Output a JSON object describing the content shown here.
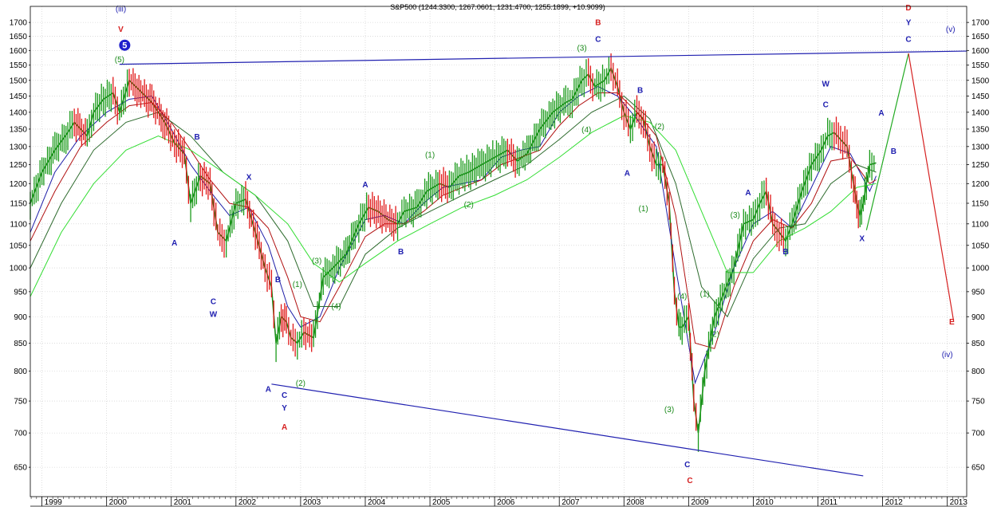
{
  "chart_data": {
    "type": "line",
    "title": "S&P500 (1244.3300, 1267.0601, 1231.4700, 1255.1899, +10.9099)",
    "xlabel": "",
    "ylabel": "",
    "y_scale": "log",
    "ylim": [
      610,
      1760
    ],
    "xlim": [
      1998.82,
      2013.3
    ],
    "grid": true,
    "y_ticks": [
      650,
      700,
      750,
      800,
      850,
      900,
      950,
      1000,
      1050,
      1100,
      1150,
      1200,
      1250,
      1300,
      1350,
      1400,
      1450,
      1500,
      1550,
      1600,
      1650,
      1700
    ],
    "x_ticks": [
      {
        "label": "1999",
        "x": 1999.0
      },
      {
        "label": "2000",
        "x": 2000.0
      },
      {
        "label": "2001",
        "x": 2001.0
      },
      {
        "label": "2002",
        "x": 2002.0
      },
      {
        "label": "2003",
        "x": 2003.0
      },
      {
        "label": "2004",
        "x": 2004.0
      },
      {
        "label": "2005",
        "x": 2005.0
      },
      {
        "label": "2006",
        "x": 2006.0
      },
      {
        "label": "2007",
        "x": 2007.0
      },
      {
        "label": "2008",
        "x": 2008.0
      },
      {
        "label": "2009",
        "x": 2009.0
      },
      {
        "label": "2010",
        "x": 2010.0
      },
      {
        "label": "2011",
        "x": 2011.0
      },
      {
        "label": "2012",
        "x": 2012.0
      },
      {
        "label": "2013",
        "x": 2013.0
      }
    ],
    "series": [
      {
        "color": "#1a8a1a",
        "x": [
          1998.82,
          1999.0,
          1999.2,
          1999.4,
          1999.5,
          1999.7,
          1999.8,
          1999.95,
          2000.1,
          2000.2,
          2000.35,
          2000.5,
          2000.7,
          2000.9,
          2001.05,
          2001.2,
          2001.3,
          2001.45,
          2001.6,
          2001.72,
          2001.85,
          2002.0,
          2002.15,
          2002.3,
          2002.45,
          2002.55,
          2002.62,
          2002.7,
          2002.78,
          2002.85,
          2002.95,
          2003.05,
          2003.2,
          2003.35,
          2003.5,
          2003.7,
          2003.9,
          2004.05,
          2004.2,
          2004.35,
          2004.5,
          2004.6,
          2004.8,
          2004.95,
          2005.15,
          2005.3,
          2005.45,
          2005.6,
          2005.8,
          2006.0,
          2006.2,
          2006.35,
          2006.5,
          2006.7,
          2006.9,
          2007.1,
          2007.2,
          2007.35,
          2007.45,
          2007.55,
          2007.7,
          2007.8,
          2007.9,
          2008.0,
          2008.1,
          2008.2,
          2008.3,
          2008.4,
          2008.5,
          2008.6,
          2008.7,
          2008.78,
          2008.85,
          2008.9,
          2009.0,
          2009.08,
          2009.15,
          2009.25,
          2009.4,
          2009.55,
          2009.7,
          2009.85,
          2010.0,
          2010.1,
          2010.2,
          2010.3,
          2010.4,
          2010.5,
          2010.6,
          2010.75,
          2010.9,
          2011.05,
          2011.15,
          2011.25,
          2011.35,
          2011.45,
          2011.55,
          2011.6,
          2011.65,
          2011.7,
          2011.75,
          2011.8,
          2011.9
        ],
        "values": [
          1150,
          1230,
          1290,
          1340,
          1370,
          1330,
          1400,
          1440,
          1460,
          1400,
          1500,
          1470,
          1430,
          1370,
          1310,
          1280,
          1150,
          1220,
          1200,
          1080,
          1060,
          1150,
          1160,
          1080,
          1000,
          960,
          850,
          900,
          890,
          860,
          850,
          870,
          860,
          980,
          1000,
          1030,
          1100,
          1140,
          1130,
          1110,
          1100,
          1130,
          1140,
          1180,
          1200,
          1190,
          1220,
          1230,
          1250,
          1270,
          1290,
          1260,
          1280,
          1350,
          1400,
          1430,
          1440,
          1500,
          1520,
          1480,
          1500,
          1540,
          1480,
          1400,
          1350,
          1400,
          1380,
          1300,
          1250,
          1250,
          1150,
          950,
          880,
          880,
          900,
          750,
          700,
          800,
          900,
          950,
          1000,
          1100,
          1110,
          1150,
          1180,
          1100,
          1080,
          1060,
          1100,
          1180,
          1250,
          1290,
          1330,
          1340,
          1320,
          1300,
          1200,
          1150,
          1120,
          1150,
          1200,
          1250,
          1255
        ]
      },
      {
        "color": "#1f1fa8",
        "x": [
          1998.82,
          1999.2,
          1999.6,
          2000.0,
          2000.35,
          2000.7,
          2001.0,
          2001.3,
          2001.6,
          2001.9,
          2002.2,
          2002.5,
          2002.8,
          2003.0,
          2003.3,
          2003.6,
          2004.0,
          2004.3,
          2004.6,
          2004.9,
          2005.2,
          2005.5,
          2005.8,
          2006.1,
          2006.4,
          2006.7,
          2007.0,
          2007.3,
          2007.6,
          2007.9,
          2008.2,
          2008.5,
          2008.8,
          2009.1,
          2009.4,
          2009.7,
          2010.0,
          2010.3,
          2010.6,
          2010.9,
          2011.2,
          2011.5,
          2011.8,
          2011.9
        ],
        "values": [
          1080,
          1230,
          1330,
          1400,
          1440,
          1450,
          1350,
          1250,
          1180,
          1120,
          1140,
          1050,
          920,
          880,
          900,
          1000,
          1110,
          1120,
          1100,
          1150,
          1190,
          1200,
          1210,
          1270,
          1290,
          1300,
          1400,
          1450,
          1480,
          1450,
          1380,
          1300,
          1000,
          780,
          870,
          1000,
          1100,
          1130,
          1090,
          1190,
          1300,
          1280,
          1180,
          1220
        ]
      },
      {
        "color": "#b01010",
        "x": [
          1998.82,
          1999.2,
          1999.6,
          2000.0,
          2000.35,
          2000.7,
          2001.0,
          2001.3,
          2001.6,
          2001.9,
          2002.2,
          2002.5,
          2002.8,
          2003.0,
          2003.3,
          2003.6,
          2004.0,
          2004.3,
          2004.6,
          2004.9,
          2005.2,
          2005.5,
          2005.8,
          2006.1,
          2006.4,
          2006.7,
          2007.0,
          2007.3,
          2007.6,
          2007.9,
          2008.2,
          2008.5,
          2008.8,
          2009.1,
          2009.4,
          2009.7,
          2010.0,
          2010.3,
          2010.6,
          2010.9,
          2011.2,
          2011.5,
          2011.8,
          2011.9
        ],
        "values": [
          1060,
          1180,
          1300,
          1370,
          1420,
          1430,
          1370,
          1290,
          1210,
          1150,
          1140,
          1090,
          980,
          900,
          890,
          960,
          1070,
          1100,
          1100,
          1130,
          1170,
          1190,
          1210,
          1250,
          1270,
          1290,
          1360,
          1420,
          1460,
          1460,
          1400,
          1330,
          1120,
          850,
          840,
          960,
          1060,
          1110,
          1090,
          1150,
          1260,
          1270,
          1200,
          1210
        ]
      },
      {
        "color": "#2e6b2e",
        "x": [
          1998.82,
          1999.3,
          1999.8,
          2000.3,
          2000.8,
          2001.3,
          2001.8,
          2002.3,
          2002.8,
          2003.2,
          2003.6,
          2004.0,
          2004.5,
          2005.0,
          2005.5,
          2006.0,
          2006.5,
          2007.0,
          2007.5,
          2008.0,
          2008.4,
          2008.8,
          2009.2,
          2009.6,
          2010.0,
          2010.4,
          2010.8,
          2011.2,
          2011.6,
          2011.9
        ],
        "values": [
          1000,
          1150,
          1290,
          1370,
          1400,
          1330,
          1230,
          1170,
          1060,
          920,
          920,
          1030,
          1090,
          1130,
          1170,
          1210,
          1250,
          1320,
          1400,
          1450,
          1380,
          1200,
          960,
          900,
          1020,
          1090,
          1100,
          1200,
          1250,
          1230
        ]
      },
      {
        "color": "#33dd33",
        "x": [
          1998.82,
          1999.3,
          1999.8,
          2000.3,
          2000.8,
          2001.3,
          2001.8,
          2002.3,
          2002.8,
          2003.2,
          2003.6,
          2004.0,
          2004.5,
          2005.0,
          2005.5,
          2006.0,
          2006.5,
          2007.0,
          2007.5,
          2008.0,
          2008.4,
          2008.8,
          2009.2,
          2009.6,
          2010.0,
          2010.4,
          2010.8,
          2011.2,
          2011.6,
          2011.9
        ],
        "values": [
          940,
          1080,
          1200,
          1290,
          1330,
          1290,
          1230,
          1170,
          1100,
          1010,
          970,
          1010,
          1060,
          1100,
          1140,
          1170,
          1210,
          1270,
          1340,
          1390,
          1370,
          1290,
          1130,
          990,
          990,
          1060,
          1090,
          1130,
          1190,
          1200
        ]
      }
    ],
    "projection": [
      {
        "color": "#22aa22",
        "x": [
          2011.75,
          2012.4
        ],
        "values": [
          1085,
          1590
        ]
      },
      {
        "color": "#d62020",
        "x": [
          2012.4,
          2013.1
        ],
        "values": [
          1590,
          890
        ]
      }
    ],
    "trendlines": [
      {
        "color": "#2020b0",
        "x": [
          2000.2,
          2013.3
        ],
        "values": [
          1553,
          1598
        ]
      },
      {
        "color": "#2020b0",
        "x": [
          2002.55,
          2011.7
        ],
        "values": [
          778,
          638
        ]
      }
    ],
    "annotations": [
      {
        "text": "(iii)",
        "x": 2000.22,
        "y": 1740,
        "color": "#2020b0",
        "kind": "label"
      },
      {
        "text": "V",
        "x": 2000.22,
        "y": 1665,
        "color": "#d62020",
        "kind": "label"
      },
      {
        "text": "5",
        "x": 2000.28,
        "y": 1610,
        "color": "#1f1fcc",
        "kind": "badge"
      },
      {
        "text": "(5)",
        "x": 2000.2,
        "y": 1560,
        "color": "#1a8a1a",
        "kind": "label"
      },
      {
        "text": "B",
        "x": 2001.4,
        "y": 1320,
        "color": "#2020b0",
        "kind": "label"
      },
      {
        "text": "A",
        "x": 2001.05,
        "y": 1050,
        "color": "#2020b0",
        "kind": "label"
      },
      {
        "text": "C",
        "x": 2001.65,
        "y": 925,
        "color": "#2020b0",
        "kind": "label"
      },
      {
        "text": "W",
        "x": 2001.65,
        "y": 900,
        "color": "#2020b0",
        "kind": "label"
      },
      {
        "text": "X",
        "x": 2002.2,
        "y": 1210,
        "color": "#2020b0",
        "kind": "label"
      },
      {
        "text": "B",
        "x": 2002.65,
        "y": 970,
        "color": "#2020b0",
        "kind": "label"
      },
      {
        "text": "(1)",
        "x": 2002.95,
        "y": 960,
        "color": "#1a8a1a",
        "kind": "label"
      },
      {
        "text": "(3)",
        "x": 2003.25,
        "y": 1010,
        "color": "#1a8a1a",
        "kind": "label"
      },
      {
        "text": "(4)",
        "x": 2003.55,
        "y": 915,
        "color": "#1a8a1a",
        "kind": "label"
      },
      {
        "text": "(2)",
        "x": 2003.0,
        "y": 775,
        "color": "#1a8a1a",
        "kind": "label"
      },
      {
        "text": "A",
        "x": 2002.5,
        "y": 765,
        "color": "#2020b0",
        "kind": "label"
      },
      {
        "text": "C",
        "x": 2002.75,
        "y": 755,
        "color": "#2020b0",
        "kind": "label"
      },
      {
        "text": "Y",
        "x": 2002.75,
        "y": 735,
        "color": "#2020b0",
        "kind": "label"
      },
      {
        "text": "A",
        "x": 2002.75,
        "y": 705,
        "color": "#d62020",
        "kind": "label"
      },
      {
        "text": "A",
        "x": 2004.0,
        "y": 1190,
        "color": "#2020b0",
        "kind": "label"
      },
      {
        "text": "B",
        "x": 2004.55,
        "y": 1030,
        "color": "#2020b0",
        "kind": "label"
      },
      {
        "text": "(1)",
        "x": 2005.0,
        "y": 1270,
        "color": "#1a8a1a",
        "kind": "label"
      },
      {
        "text": "(2)",
        "x": 2005.6,
        "y": 1140,
        "color": "#1a8a1a",
        "kind": "label"
      },
      {
        "text": "(3)",
        "x": 2007.35,
        "y": 1600,
        "color": "#1a8a1a",
        "kind": "label"
      },
      {
        "text": "B",
        "x": 2007.6,
        "y": 1690,
        "color": "#d62020",
        "kind": "label"
      },
      {
        "text": "C",
        "x": 2007.6,
        "y": 1630,
        "color": "#2020b0",
        "kind": "label"
      },
      {
        "text": "(4)",
        "x": 2007.42,
        "y": 1340,
        "color": "#1a8a1a",
        "kind": "label"
      },
      {
        "text": "B",
        "x": 2008.25,
        "y": 1460,
        "color": "#2020b0",
        "kind": "label"
      },
      {
        "text": "A",
        "x": 2008.05,
        "y": 1220,
        "color": "#2020b0",
        "kind": "label"
      },
      {
        "text": "(1)",
        "x": 2008.3,
        "y": 1130,
        "color": "#1a8a1a",
        "kind": "label"
      },
      {
        "text": "(2)",
        "x": 2008.55,
        "y": 1350,
        "color": "#1a8a1a",
        "kind": "label"
      },
      {
        "text": "(4)",
        "x": 2008.9,
        "y": 935,
        "color": "#1a8a1a",
        "kind": "label"
      },
      {
        "text": "(3)",
        "x": 2008.7,
        "y": 732,
        "color": "#1a8a1a",
        "kind": "label"
      },
      {
        "text": "(1)",
        "x": 2009.25,
        "y": 940,
        "color": "#1a8a1a",
        "kind": "label"
      },
      {
        "text": "(2)",
        "x": 2009.4,
        "y": 862,
        "color": "#1a8a1a",
        "kind": "label"
      },
      {
        "text": "C",
        "x": 2008.98,
        "y": 650,
        "color": "#2020b0",
        "kind": "label"
      },
      {
        "text": "C",
        "x": 2009.02,
        "y": 628,
        "color": "#d62020",
        "kind": "label"
      },
      {
        "text": "(3)",
        "x": 2009.72,
        "y": 1115,
        "color": "#1a8a1a",
        "kind": "label"
      },
      {
        "text": "A",
        "x": 2009.92,
        "y": 1170,
        "color": "#2020b0",
        "kind": "label"
      },
      {
        "text": "B",
        "x": 2010.5,
        "y": 1030,
        "color": "#2020b0",
        "kind": "label"
      },
      {
        "text": "W",
        "x": 2011.12,
        "y": 1480,
        "color": "#2020b0",
        "kind": "label"
      },
      {
        "text": "C",
        "x": 2011.12,
        "y": 1415,
        "color": "#2020b0",
        "kind": "label"
      },
      {
        "text": "X",
        "x": 2011.68,
        "y": 1060,
        "color": "#2020b0",
        "kind": "label"
      },
      {
        "text": "A",
        "x": 2011.98,
        "y": 1390,
        "color": "#2020b0",
        "kind": "label"
      },
      {
        "text": "B",
        "x": 2012.17,
        "y": 1280,
        "color": "#2020b0",
        "kind": "label"
      },
      {
        "text": "D",
        "x": 2012.4,
        "y": 1745,
        "color": "#d62020",
        "kind": "label"
      },
      {
        "text": "Y",
        "x": 2012.4,
        "y": 1690,
        "color": "#2020b0",
        "kind": "label"
      },
      {
        "text": "C",
        "x": 2012.4,
        "y": 1630,
        "color": "#2020b0",
        "kind": "label"
      },
      {
        "text": "(v)",
        "x": 2013.05,
        "y": 1665,
        "color": "#2020b0",
        "kind": "label"
      },
      {
        "text": "E",
        "x": 2013.07,
        "y": 885,
        "color": "#d62020",
        "kind": "label"
      },
      {
        "text": "(iv)",
        "x": 2013.0,
        "y": 825,
        "color": "#2020b0",
        "kind": "label"
      }
    ]
  }
}
